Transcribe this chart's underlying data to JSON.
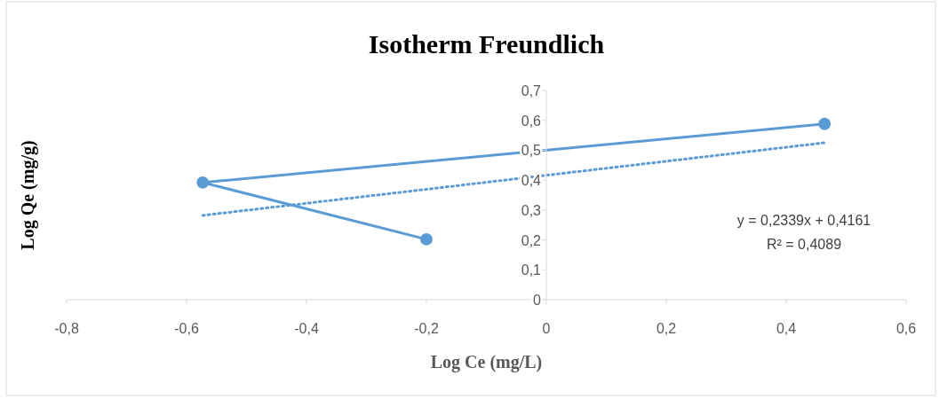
{
  "chart_data": {
    "type": "line",
    "title": "Isotherm Freundlich",
    "xlabel": "Log Ce (mg/L)",
    "ylabel": "Log Qe (mg/g)",
    "xlim": [
      -0.8,
      0.6
    ],
    "ylim": [
      0,
      0.7
    ],
    "xticks": [
      {
        "value": -0.8,
        "label": "-0,8"
      },
      {
        "value": -0.6,
        "label": "-0,6"
      },
      {
        "value": -0.4,
        "label": "-0,4"
      },
      {
        "value": -0.2,
        "label": "-0,2"
      },
      0,
      {
        "value": 0.2,
        "label": "0,2"
      },
      {
        "value": 0.4,
        "label": "0,4"
      },
      {
        "value": 0.6,
        "label": "0,6"
      }
    ],
    "yticks": [
      0,
      {
        "value": 0.1,
        "label": "0,1"
      },
      {
        "value": 0.2,
        "label": "0,2"
      },
      {
        "value": 0.3,
        "label": "0,3"
      },
      {
        "value": 0.4,
        "label": "0,4"
      },
      {
        "value": 0.5,
        "label": "0,5"
      },
      {
        "value": 0.6,
        "label": "0,6"
      },
      {
        "value": 0.7,
        "label": "0,7"
      }
    ],
    "series": [
      {
        "color": "#5b9bd5",
        "x": [
          -0.2,
          -0.573,
          0.464
        ],
        "values": [
          0.202,
          0.392,
          0.588
        ],
        "marker": "circle",
        "line_style": "solid"
      },
      {
        "type": "line",
        "color": "#5b9bd5",
        "x": [
          -0.573,
          0.464
        ],
        "values": [
          0.282,
          0.525
        ],
        "marker": "none",
        "line_style": "dotted"
      }
    ],
    "annotations": [
      "y = 0,2339x + 0,4161",
      "R² = 0,4089"
    ]
  }
}
